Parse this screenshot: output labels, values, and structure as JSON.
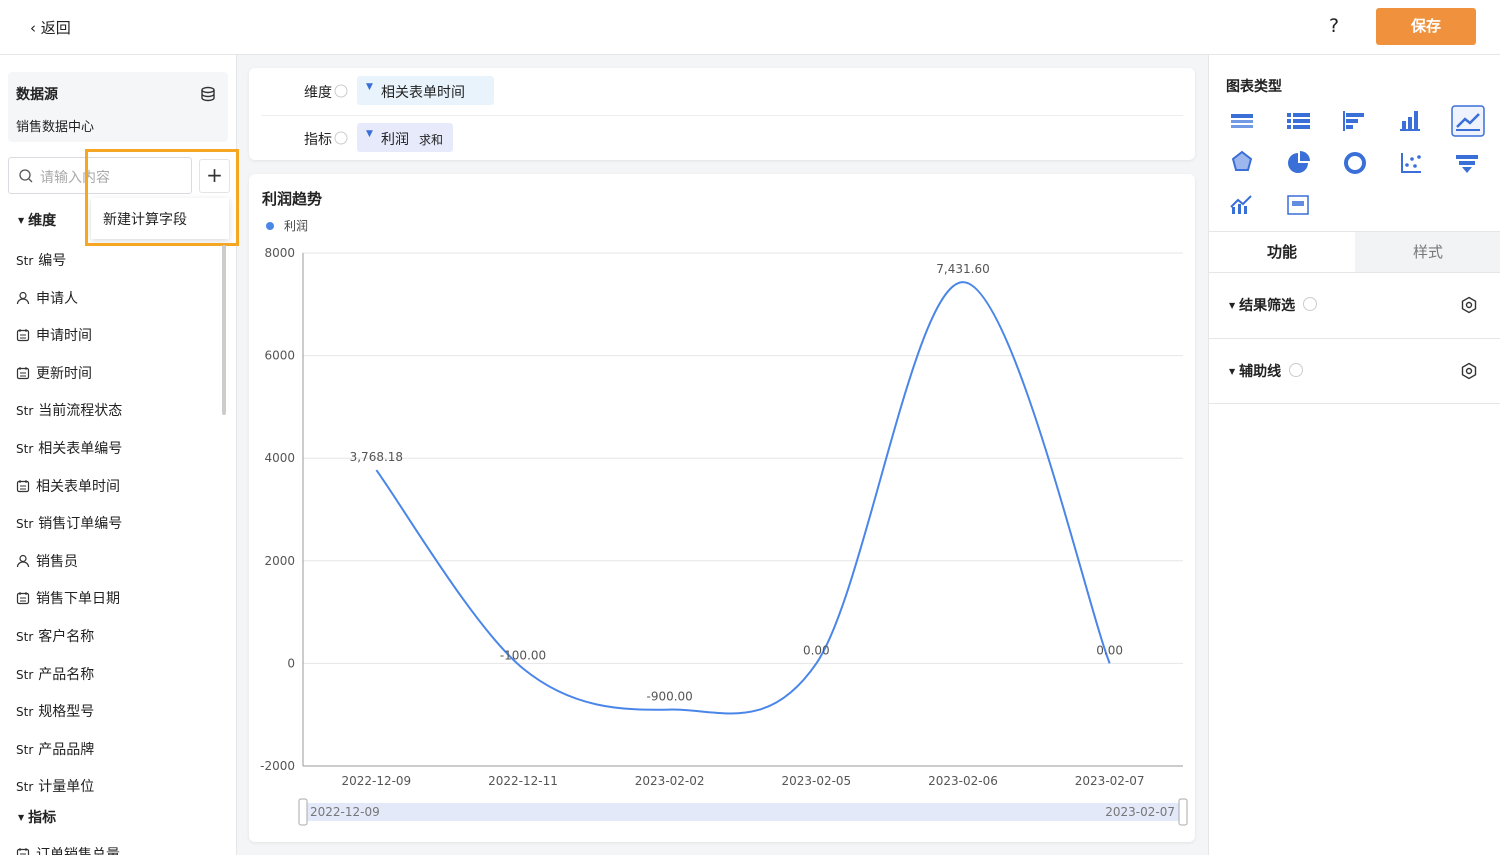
{
  "top_bar": {
    "back": "返回",
    "help": "?",
    "save": "保存"
  },
  "data_source": {
    "title": "数据源",
    "name": "销售数据中心"
  },
  "search": {
    "placeholder": "请输入内容",
    "menu_item": "新建计算字段"
  },
  "dimensions": {
    "title": "维度",
    "fields": [
      {
        "prefix": "Str",
        "name": "编号"
      },
      {
        "icon": "user",
        "name": "申请人"
      },
      {
        "icon": "date",
        "name": "申请时间"
      },
      {
        "icon": "date",
        "name": "更新时间"
      },
      {
        "prefix": "Str",
        "name": "当前流程状态"
      },
      {
        "prefix": "Str",
        "name": "相关表单编号"
      },
      {
        "icon": "date",
        "name": "相关表单时间"
      },
      {
        "prefix": "Str",
        "name": "销售订单编号"
      },
      {
        "icon": "user",
        "name": "销售员"
      },
      {
        "icon": "date",
        "name": "销售下单日期"
      },
      {
        "prefix": "Str",
        "name": "客户名称"
      },
      {
        "prefix": "Str",
        "name": "产品名称"
      },
      {
        "prefix": "Str",
        "name": "规格型号"
      },
      {
        "prefix": "Str",
        "name": "产品品牌"
      },
      {
        "prefix": "Str",
        "name": "计量单位"
      }
    ]
  },
  "measures": {
    "title": "指标",
    "fields": [
      {
        "icon": "date",
        "name": "订单销售总量"
      }
    ]
  },
  "config": {
    "dimension_label": "维度",
    "dimension_chip": "相关表单时间",
    "measure_label": "指标",
    "measure_chip": "利润",
    "measure_agg": "求和"
  },
  "chart_data": {
    "type": "line",
    "title": "利润趋势",
    "smooth": true,
    "grid": true,
    "categories": [
      "2022-12-09",
      "2022-12-11",
      "2023-02-02",
      "2023-02-05",
      "2023-02-06",
      "2023-02-07"
    ],
    "series": [
      {
        "name": "利润",
        "color": "#4a86e8",
        "values": [
          3768.18,
          -100,
          -900,
          0,
          7431.6,
          0
        ],
        "value_labels": [
          "3,768.18",
          "-100.00",
          "-900.00",
          "0.00",
          "7,431.60",
          "0.00"
        ]
      }
    ],
    "ylim": [
      -2000,
      8000
    ],
    "yticks": [
      -2000,
      0,
      2000,
      4000,
      6000,
      8000
    ]
  },
  "right_panel": {
    "chart_types_title": "图表类型",
    "tabs": [
      "功能",
      "样式"
    ],
    "sections": [
      "结果筛选",
      "辅助线"
    ]
  }
}
